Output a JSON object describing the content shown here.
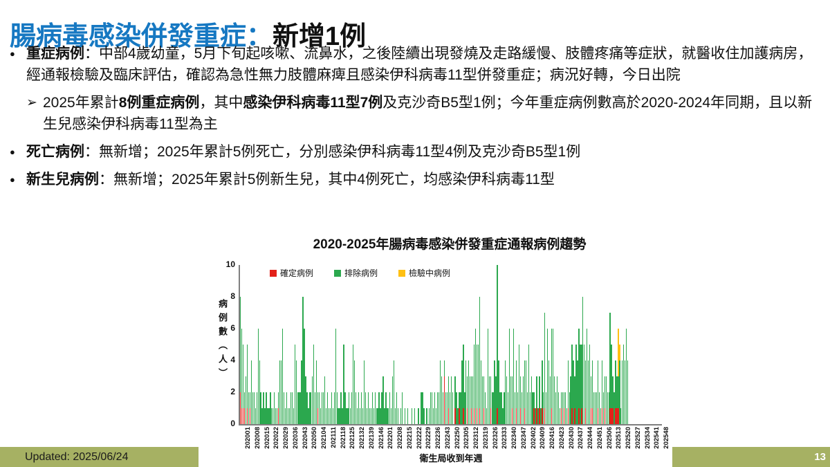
{
  "slide": {
    "title": {
      "highlight": "腸病毒感染併發重症：",
      "rest": "新增1例"
    },
    "bullets": [
      {
        "marker": "●",
        "level": 0,
        "segments": [
          {
            "t": "重症病例",
            "b": true
          },
          {
            "t": "：中部4歲幼童，5月下旬起咳嗽、流鼻水，之後陸續出現發燒及走路緩慢、肢體疼痛等症狀，就醫收住加護病房，經通報檢驗及臨床評估，確認為急性無力肢體麻痺且感染伊科病毒11型併發重症；病況好轉，今日出院",
            "b": false
          }
        ]
      },
      {
        "marker": "➢",
        "level": 1,
        "segments": [
          {
            "t": "2025年累計",
            "b": false
          },
          {
            "t": "8例重症病例",
            "b": true
          },
          {
            "t": "，其中",
            "b": false
          },
          {
            "t": "感染伊科病毒11型7例",
            "b": true
          },
          {
            "t": "及克沙奇B5型1例；今年重症病例數高於2020-2024年同期，且以新生兒感染伊科病毒11型為主",
            "b": false
          }
        ]
      },
      {
        "marker": "●",
        "level": 0,
        "segments": [
          {
            "t": "死亡病例",
            "b": true
          },
          {
            "t": "：無新增；2025年累計5例死亡，分別感染伊科病毒11型4例及克沙奇B5型1例",
            "b": false
          }
        ]
      },
      {
        "marker": "●",
        "level": 0,
        "segments": [
          {
            "t": "新生兒病例",
            "b": true
          },
          {
            "t": "：無新增；2025年累計5例新生兒，其中4例死亡，均感染伊科病毒11型",
            "b": false
          }
        ]
      }
    ],
    "footer": {
      "updated_label": "Updated: 2025/06/24",
      "page_number": "13"
    },
    "colors": {
      "title_blue": "#1678C2",
      "footer_olive": "#A6B163",
      "axis_gray": "#7f7f7f"
    }
  },
  "chart_data": {
    "type": "bar",
    "stacked": true,
    "title": "2020-2025年腸病毒感染併發重症通報病例趨勢",
    "xlabel": "衛生局收到年週",
    "ylabel": "病例數（人）",
    "ylim": [
      0,
      10
    ],
    "yticks": [
      0,
      2,
      4,
      6,
      8,
      10
    ],
    "grid": false,
    "legend_position": "top-left-inside",
    "weeks_total": 313,
    "x_first_week": "202001",
    "x_last_week": "202548",
    "x_tick_step_weeks": 7,
    "x_tick_labels": [
      "202001",
      "202008",
      "202015",
      "202022",
      "202029",
      "202036",
      "202043",
      "202050",
      "202104",
      "202111",
      "202118",
      "202125",
      "202132",
      "202139",
      "202146",
      "202201",
      "202208",
      "202215",
      "202222",
      "202229",
      "202236",
      "202243",
      "202250",
      "202305",
      "202312",
      "202319",
      "202326",
      "202333",
      "202340",
      "202347",
      "202402",
      "202409",
      "202416",
      "202423",
      "202430",
      "202437",
      "202444",
      "202451",
      "202506",
      "202513",
      "202520",
      "202527",
      "202534",
      "202541",
      "202548"
    ],
    "series": [
      {
        "name": "確定病例",
        "color": "#E32119",
        "values": [
          2,
          1,
          1,
          1,
          0,
          1,
          0,
          1,
          0,
          0,
          0,
          0,
          0,
          0,
          0,
          0,
          0,
          0,
          0,
          0,
          0,
          0,
          0,
          0,
          0,
          0,
          0,
          0,
          1,
          0,
          0,
          0,
          0,
          0,
          0,
          0,
          0,
          0,
          0,
          0,
          0,
          0,
          0,
          0,
          0,
          0,
          0,
          0,
          0,
          0,
          0,
          0,
          0,
          0,
          0,
          0,
          0,
          1,
          0,
          0,
          0,
          0,
          0,
          0,
          0,
          0,
          0,
          0,
          0,
          0,
          0,
          0,
          0,
          0,
          0,
          0,
          0,
          0,
          0,
          0,
          0,
          0,
          0,
          0,
          0,
          0,
          0,
          0,
          0,
          0,
          0,
          0,
          0,
          0,
          0,
          0,
          0,
          0,
          0,
          0,
          0,
          0,
          0,
          0,
          0,
          0,
          0,
          0,
          0,
          0,
          0,
          0,
          0,
          0,
          0,
          0,
          0,
          0,
          0,
          0,
          0,
          0,
          0,
          0,
          0,
          0,
          0,
          0,
          0,
          0,
          0,
          0,
          0,
          0,
          0,
          0,
          0,
          0,
          0,
          0,
          0,
          0,
          0,
          0,
          0,
          0,
          0,
          0,
          0,
          0,
          3,
          0,
          0,
          1,
          0,
          0,
          0,
          0,
          1,
          0,
          0,
          1,
          0,
          0,
          1,
          0,
          0,
          1,
          0,
          0,
          1,
          0,
          1,
          0,
          1,
          0,
          1,
          0,
          0,
          1,
          0,
          0,
          0,
          0,
          1,
          0,
          0,
          0,
          0,
          1,
          0,
          0,
          0,
          0,
          0,
          0,
          0,
          0,
          0,
          0,
          1,
          0,
          0,
          1,
          0,
          0,
          1,
          0,
          0,
          1,
          0,
          0,
          0,
          0,
          0,
          0,
          1,
          0,
          1,
          0,
          1,
          0,
          1,
          0,
          1,
          0,
          0,
          0,
          0,
          1,
          0,
          0,
          0,
          0,
          0,
          0,
          1,
          0,
          1,
          0,
          0,
          1,
          0,
          0,
          1,
          0,
          1,
          0,
          0,
          1,
          0,
          1,
          0,
          0,
          1,
          0,
          0,
          0,
          1,
          1,
          0,
          0,
          0,
          1,
          0,
          0,
          1,
          0,
          1,
          0,
          0,
          0,
          1,
          1,
          1,
          0,
          1,
          1,
          1,
          0,
          0,
          0,
          0,
          0,
          0,
          0,
          0,
          0,
          0,
          0,
          0,
          0,
          0,
          0,
          0,
          0,
          0,
          0,
          0,
          0,
          0,
          0,
          0,
          0,
          0,
          0
        ]
      },
      {
        "name": "排除病例",
        "color": "#2BA84E",
        "values": [
          6,
          5,
          4,
          1,
          3,
          4,
          2,
          1,
          4,
          2,
          2,
          1,
          2,
          6,
          4,
          2,
          1,
          2,
          1,
          2,
          1,
          1,
          2,
          1,
          1,
          2,
          1,
          1,
          1,
          4,
          4,
          6,
          2,
          1,
          2,
          1,
          1,
          2,
          2,
          1,
          5,
          4,
          2,
          2,
          2,
          4,
          8,
          6,
          3,
          2,
          1,
          2,
          2,
          3,
          5,
          2,
          4,
          1,
          2,
          1,
          2,
          2,
          3,
          1,
          2,
          1,
          1,
          2,
          1,
          2,
          6,
          2,
          1,
          1,
          2,
          1,
          5,
          2,
          1,
          1,
          2,
          1,
          2,
          5,
          4,
          2,
          1,
          2,
          1,
          2,
          1,
          4,
          2,
          1,
          2,
          1,
          1,
          2,
          1,
          2,
          1,
          1,
          2,
          1,
          2,
          3,
          1,
          2,
          1,
          1,
          2,
          1,
          3,
          4,
          1,
          2,
          1,
          0,
          1,
          2,
          0,
          1,
          0,
          1,
          0,
          0,
          1,
          0,
          1,
          0,
          0,
          1,
          0,
          2,
          2,
          1,
          0,
          1,
          0,
          1,
          2,
          2,
          1,
          2,
          1,
          2,
          2,
          4,
          3,
          2,
          1,
          2,
          2,
          2,
          2,
          3,
          2,
          0,
          2,
          2,
          1,
          1,
          2,
          4,
          4,
          2,
          4,
          2,
          4,
          3,
          2,
          3,
          4,
          6,
          4,
          5,
          7,
          4,
          3,
          2,
          2,
          1,
          6,
          3,
          2,
          2,
          2,
          4,
          3,
          9,
          4,
          2,
          2,
          1,
          2,
          4,
          3,
          2,
          6,
          3,
          2,
          6,
          2,
          3,
          2,
          5,
          2,
          2,
          3,
          3,
          4,
          2,
          5,
          2,
          3,
          2,
          1,
          1,
          2,
          1,
          2,
          1,
          3,
          2,
          6,
          2,
          6,
          4,
          3,
          5,
          6,
          3,
          2,
          3,
          2,
          1,
          1,
          2,
          1,
          2,
          1,
          3,
          2,
          3,
          4,
          4,
          2,
          5,
          4,
          5,
          5,
          4,
          8,
          5,
          3,
          6,
          4,
          5,
          2,
          3,
          2,
          2,
          2,
          3,
          2,
          1,
          3,
          2,
          2,
          3,
          2,
          2,
          6,
          4,
          2,
          2,
          3,
          2,
          2,
          4,
          1,
          4,
          5,
          4,
          6,
          4,
          0,
          0,
          0,
          0,
          0,
          0,
          0,
          0,
          0,
          0,
          0,
          0,
          0,
          0,
          0,
          0,
          0,
          0,
          0,
          0,
          0,
          0,
          0,
          0,
          0,
          0,
          0
        ]
      },
      {
        "name": "檢驗中病例",
        "color": "#FFC013",
        "values": [
          0,
          0,
          0,
          0,
          0,
          0,
          0,
          0,
          0,
          0,
          0,
          0,
          0,
          0,
          0,
          0,
          0,
          0,
          0,
          0,
          0,
          0,
          0,
          0,
          0,
          0,
          0,
          0,
          0,
          0,
          0,
          0,
          0,
          0,
          0,
          0,
          0,
          0,
          0,
          0,
          0,
          0,
          0,
          0,
          0,
          0,
          0,
          0,
          0,
          0,
          0,
          0,
          0,
          0,
          0,
          0,
          0,
          0,
          0,
          0,
          0,
          0,
          0,
          0,
          0,
          0,
          0,
          0,
          0,
          0,
          0,
          0,
          0,
          0,
          0,
          0,
          0,
          0,
          0,
          0,
          0,
          0,
          0,
          0,
          0,
          0,
          0,
          0,
          0,
          0,
          0,
          0,
          0,
          0,
          0,
          0,
          0,
          0,
          0,
          0,
          0,
          0,
          0,
          0,
          0,
          0,
          0,
          0,
          0,
          0,
          0,
          0,
          0,
          0,
          0,
          0,
          0,
          0,
          0,
          0,
          0,
          0,
          0,
          0,
          0,
          0,
          0,
          0,
          0,
          0,
          0,
          0,
          0,
          0,
          0,
          0,
          0,
          0,
          0,
          0,
          0,
          0,
          0,
          0,
          0,
          0,
          0,
          0,
          0,
          0,
          0,
          0,
          0,
          0,
          0,
          0,
          0,
          0,
          0,
          0,
          0,
          0,
          0,
          0,
          0,
          0,
          0,
          0,
          0,
          0,
          0,
          0,
          0,
          0,
          0,
          0,
          0,
          0,
          0,
          0,
          0,
          0,
          0,
          0,
          0,
          0,
          0,
          0,
          0,
          0,
          0,
          0,
          0,
          0,
          0,
          0,
          0,
          0,
          0,
          0,
          0,
          0,
          0,
          0,
          0,
          0,
          0,
          0,
          0,
          0,
          0,
          0,
          0,
          0,
          0,
          0,
          0,
          0,
          0,
          0,
          0,
          0,
          0,
          0,
          0,
          0,
          0,
          0,
          0,
          0,
          0,
          0,
          0,
          0,
          0,
          0,
          0,
          0,
          0,
          0,
          0,
          0,
          0,
          0,
          0,
          0,
          0,
          0,
          0,
          0,
          0,
          0,
          0,
          0,
          0,
          0,
          0,
          0,
          0,
          0,
          0,
          0,
          0,
          0,
          0,
          0,
          0,
          0,
          0,
          0,
          0,
          0,
          0,
          0,
          0,
          0,
          0,
          0,
          3,
          1,
          0,
          0,
          0,
          0,
          0,
          0,
          0,
          0,
          0,
          0,
          0,
          0,
          0,
          0,
          0,
          0,
          0,
          0,
          0,
          0,
          0,
          0,
          0,
          0,
          0,
          0
        ]
      }
    ]
  }
}
